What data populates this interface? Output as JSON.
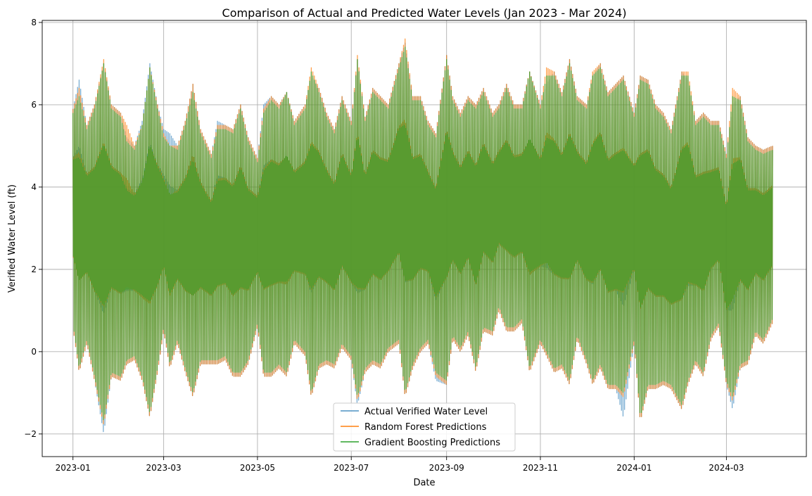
{
  "chart_data": {
    "type": "line",
    "title": "Comparison of Actual and Predicted Water Levels (Jan 2023 - Mar 2024)",
    "xlabel": "Date",
    "ylabel": "Verified Water Level (ft)",
    "xlim": [
      "2022-12-12",
      "2024-04-22"
    ],
    "ylim": [
      -2.55,
      8.05
    ],
    "x_ticks": [
      "2023-01-01",
      "2023-03-01",
      "2023-05-01",
      "2023-07-01",
      "2023-09-01",
      "2023-11-01",
      "2024-01-01",
      "2024-03-01"
    ],
    "x_tick_labels": [
      "2023-01",
      "2023-03",
      "2023-05",
      "2023-07",
      "2023-09",
      "2023-11",
      "2024-01",
      "2024-03"
    ],
    "y_ticks": [
      -2,
      0,
      2,
      4,
      6,
      8
    ],
    "y_tick_labels": [
      "−2",
      "0",
      "2",
      "4",
      "6",
      "8"
    ],
    "grid": true,
    "legend_position": "lower-center",
    "x_start": "2023-01-01",
    "x_end": "2024-03-31",
    "x_step": "6 hours",
    "series": [
      {
        "name": "Actual Verified Water Level",
        "color": "#1f77b4",
        "opacity": 0.6,
        "envelope_dates": [
          "2023-01-01",
          "2023-01-05",
          "2023-01-10",
          "2023-01-15",
          "2023-01-21",
          "2023-01-26",
          "2023-02-01",
          "2023-02-05",
          "2023-02-10",
          "2023-02-15",
          "2023-02-20",
          "2023-02-25",
          "2023-03-01",
          "2023-03-05",
          "2023-03-10",
          "2023-03-15",
          "2023-03-20",
          "2023-03-25",
          "2023-04-01",
          "2023-04-05",
          "2023-04-10",
          "2023-04-15",
          "2023-04-20",
          "2023-04-25",
          "2023-05-01",
          "2023-05-05",
          "2023-05-10",
          "2023-05-15",
          "2023-05-20",
          "2023-05-25",
          "2023-06-01",
          "2023-06-05",
          "2023-06-10",
          "2023-06-15",
          "2023-06-20",
          "2023-06-25",
          "2023-07-01",
          "2023-07-05",
          "2023-07-10",
          "2023-07-15",
          "2023-07-20",
          "2023-07-25",
          "2023-08-01",
          "2023-08-05",
          "2023-08-10",
          "2023-08-15",
          "2023-08-20",
          "2023-08-25",
          "2023-09-01",
          "2023-09-05",
          "2023-09-10",
          "2023-09-15",
          "2023-09-20",
          "2023-09-25",
          "2023-10-01",
          "2023-10-05",
          "2023-10-10",
          "2023-10-15",
          "2023-10-20",
          "2023-10-25",
          "2023-11-01",
          "2023-11-05",
          "2023-11-10",
          "2023-11-15",
          "2023-11-20",
          "2023-11-25",
          "2023-12-01",
          "2023-12-05",
          "2023-12-10",
          "2023-12-15",
          "2023-12-20",
          "2023-12-25",
          "2024-01-01",
          "2024-01-05",
          "2024-01-10",
          "2024-01-15",
          "2024-01-20",
          "2024-01-25",
          "2024-02-01",
          "2024-02-05",
          "2024-02-10",
          "2024-02-15",
          "2024-02-20",
          "2024-02-25",
          "2024-03-01",
          "2024-03-05",
          "2024-03-10",
          "2024-03-15",
          "2024-03-20",
          "2024-03-25",
          "2024-03-31"
        ],
        "envelope_high": [
          5.9,
          6.6,
          5.5,
          6.0,
          7.0,
          6.0,
          5.8,
          5.2,
          5.0,
          5.6,
          7.0,
          6.0,
          5.4,
          5.3,
          5.0,
          5.6,
          6.5,
          5.4,
          4.8,
          5.6,
          5.5,
          5.4,
          6.0,
          5.2,
          4.7,
          6.0,
          6.2,
          6.0,
          6.3,
          5.6,
          6.0,
          6.7,
          6.4,
          5.8,
          5.4,
          6.2,
          5.6,
          7.1,
          5.7,
          6.4,
          6.2,
          6.0,
          7.0,
          7.5,
          6.2,
          6.2,
          5.6,
          5.3,
          7.2,
          6.2,
          5.8,
          6.2,
          6.0,
          6.4,
          5.8,
          6.0,
          6.5,
          6.0,
          6.0,
          6.8,
          6.0,
          6.5,
          6.8,
          6.3,
          7.1,
          6.2,
          6.0,
          6.7,
          7.0,
          6.3,
          6.5,
          6.7,
          5.8,
          6.7,
          6.6,
          6.0,
          5.8,
          5.4,
          6.8,
          6.6,
          5.6,
          5.8,
          5.6,
          5.6,
          4.8,
          6.0,
          6.2,
          5.2,
          5.0,
          4.9,
          5.0
        ],
        "envelope_low": [
          0.6,
          -0.5,
          0.2,
          -0.7,
          -2.0,
          -0.6,
          -0.7,
          -0.3,
          -0.2,
          -0.7,
          -1.6,
          -0.5,
          0.5,
          -0.4,
          0.2,
          -0.5,
          -1.1,
          -0.3,
          -0.3,
          -0.3,
          -0.2,
          -0.6,
          -0.6,
          -0.3,
          0.6,
          -0.6,
          -0.6,
          -0.4,
          -0.6,
          0.2,
          -0.1,
          -1.1,
          -0.4,
          -0.3,
          -0.4,
          0.1,
          -0.2,
          -1.3,
          -0.5,
          -0.3,
          -0.4,
          0.0,
          0.2,
          -1.1,
          -0.4,
          0.0,
          0.2,
          -0.7,
          -0.8,
          0.3,
          0.0,
          0.4,
          -0.5,
          0.5,
          0.4,
          1.0,
          0.5,
          0.5,
          0.7,
          -0.5,
          0.2,
          -0.1,
          -0.5,
          -0.4,
          -0.8,
          0.3,
          -0.3,
          -0.8,
          -0.4,
          -0.9,
          -0.9,
          -1.6,
          0.2,
          -1.7,
          -0.9,
          -0.9,
          -0.8,
          -0.9,
          -1.4,
          -0.8,
          -0.3,
          -0.6,
          0.3,
          0.6,
          -0.8,
          -1.4,
          -0.4,
          -0.3,
          0.4,
          0.2,
          0.7
        ]
      },
      {
        "name": "Random Forest Predictions",
        "color": "#ff7f0e",
        "opacity": 0.75,
        "envelope_dates": [
          "2023-01-01",
          "2023-01-05",
          "2023-01-10",
          "2023-01-15",
          "2023-01-21",
          "2023-01-26",
          "2023-02-01",
          "2023-02-05",
          "2023-02-10",
          "2023-02-15",
          "2023-02-20",
          "2023-02-25",
          "2023-03-01",
          "2023-03-05",
          "2023-03-10",
          "2023-03-15",
          "2023-03-20",
          "2023-03-25",
          "2023-04-01",
          "2023-04-05",
          "2023-04-10",
          "2023-04-15",
          "2023-04-20",
          "2023-04-25",
          "2023-05-01",
          "2023-05-05",
          "2023-05-10",
          "2023-05-15",
          "2023-05-20",
          "2023-05-25",
          "2023-06-01",
          "2023-06-05",
          "2023-06-10",
          "2023-06-15",
          "2023-06-20",
          "2023-06-25",
          "2023-07-01",
          "2023-07-05",
          "2023-07-10",
          "2023-07-15",
          "2023-07-20",
          "2023-07-25",
          "2023-08-01",
          "2023-08-05",
          "2023-08-10",
          "2023-08-15",
          "2023-08-20",
          "2023-08-25",
          "2023-09-01",
          "2023-09-05",
          "2023-09-10",
          "2023-09-15",
          "2023-09-20",
          "2023-09-25",
          "2023-10-01",
          "2023-10-05",
          "2023-10-10",
          "2023-10-15",
          "2023-10-20",
          "2023-10-25",
          "2023-11-01",
          "2023-11-05",
          "2023-11-10",
          "2023-11-15",
          "2023-11-20",
          "2023-11-25",
          "2023-12-01",
          "2023-12-05",
          "2023-12-10",
          "2023-12-15",
          "2023-12-20",
          "2023-12-25",
          "2024-01-01",
          "2024-01-05",
          "2024-01-10",
          "2024-01-15",
          "2024-01-20",
          "2024-01-25",
          "2024-02-01",
          "2024-02-05",
          "2024-02-10",
          "2024-02-15",
          "2024-02-20",
          "2024-02-25",
          "2024-03-01",
          "2024-03-05",
          "2024-03-10",
          "2024-03-15",
          "2024-03-20",
          "2024-03-25",
          "2024-03-31"
        ],
        "envelope_high": [
          5.9,
          6.4,
          5.5,
          6.0,
          7.1,
          6.0,
          5.8,
          5.5,
          5.0,
          5.5,
          6.9,
          6.0,
          5.3,
          5.0,
          5.0,
          5.6,
          6.5,
          5.4,
          4.8,
          5.5,
          5.5,
          5.4,
          6.0,
          5.2,
          4.7,
          5.9,
          6.2,
          6.0,
          6.3,
          5.6,
          6.0,
          6.9,
          6.4,
          5.8,
          5.4,
          6.2,
          5.6,
          7.2,
          5.7,
          6.4,
          6.2,
          6.0,
          7.0,
          7.6,
          6.2,
          6.2,
          5.6,
          5.3,
          7.2,
          6.2,
          5.8,
          6.2,
          6.0,
          6.4,
          5.8,
          6.0,
          6.5,
          6.0,
          6.0,
          6.8,
          6.0,
          6.9,
          6.8,
          6.3,
          7.1,
          6.2,
          6.0,
          6.8,
          7.0,
          6.3,
          6.5,
          6.7,
          5.8,
          6.7,
          6.6,
          6.0,
          5.8,
          5.4,
          6.8,
          6.8,
          5.6,
          5.8,
          5.6,
          5.6,
          4.8,
          6.4,
          6.2,
          5.2,
          5.0,
          4.9,
          5.0
        ],
        "envelope_low": [
          0.6,
          -0.5,
          0.2,
          -0.7,
          -1.8,
          -0.6,
          -0.7,
          -0.3,
          -0.2,
          -0.7,
          -1.6,
          -0.5,
          0.5,
          -0.4,
          0.2,
          -0.5,
          -1.1,
          -0.3,
          -0.3,
          -0.3,
          -0.2,
          -0.6,
          -0.6,
          -0.3,
          0.6,
          -0.6,
          -0.6,
          -0.4,
          -0.6,
          0.2,
          -0.1,
          -1.1,
          -0.4,
          -0.3,
          -0.4,
          0.1,
          -0.2,
          -1.2,
          -0.5,
          -0.3,
          -0.4,
          0.0,
          0.2,
          -1.1,
          -0.4,
          0.0,
          0.2,
          -0.6,
          -0.8,
          0.3,
          0.0,
          0.4,
          -0.5,
          0.5,
          0.4,
          1.0,
          0.5,
          0.5,
          0.7,
          -0.5,
          0.2,
          -0.1,
          -0.5,
          -0.4,
          -0.8,
          0.3,
          -0.3,
          -0.8,
          -0.4,
          -0.9,
          -0.9,
          -1.1,
          0.2,
          -1.7,
          -0.9,
          -0.9,
          -0.8,
          -0.9,
          -1.4,
          -0.8,
          -0.3,
          -0.6,
          0.3,
          0.6,
          -0.8,
          -1.2,
          -0.4,
          -0.3,
          0.4,
          0.2,
          0.7
        ]
      },
      {
        "name": "Gradient Boosting Predictions",
        "color": "#2ca02c",
        "opacity": 0.75,
        "envelope_dates": [
          "2023-01-01",
          "2023-01-05",
          "2023-01-10",
          "2023-01-15",
          "2023-01-21",
          "2023-01-26",
          "2023-02-01",
          "2023-02-05",
          "2023-02-10",
          "2023-02-15",
          "2023-02-20",
          "2023-02-25",
          "2023-03-01",
          "2023-03-05",
          "2023-03-10",
          "2023-03-15",
          "2023-03-20",
          "2023-03-25",
          "2023-04-01",
          "2023-04-05",
          "2023-04-10",
          "2023-04-15",
          "2023-04-20",
          "2023-04-25",
          "2023-05-01",
          "2023-05-05",
          "2023-05-10",
          "2023-05-15",
          "2023-05-20",
          "2023-05-25",
          "2023-06-01",
          "2023-06-05",
          "2023-06-10",
          "2023-06-15",
          "2023-06-20",
          "2023-06-25",
          "2023-07-01",
          "2023-07-05",
          "2023-07-10",
          "2023-07-15",
          "2023-07-20",
          "2023-07-25",
          "2023-08-01",
          "2023-08-05",
          "2023-08-10",
          "2023-08-15",
          "2023-08-20",
          "2023-08-25",
          "2023-09-01",
          "2023-09-05",
          "2023-09-10",
          "2023-09-15",
          "2023-09-20",
          "2023-09-25",
          "2023-10-01",
          "2023-10-05",
          "2023-10-10",
          "2023-10-15",
          "2023-10-20",
          "2023-10-25",
          "2023-11-01",
          "2023-11-05",
          "2023-11-10",
          "2023-11-15",
          "2023-11-20",
          "2023-11-25",
          "2023-12-01",
          "2023-12-05",
          "2023-12-10",
          "2023-12-15",
          "2023-12-20",
          "2023-12-25",
          "2024-01-01",
          "2024-01-05",
          "2024-01-10",
          "2024-01-15",
          "2024-01-20",
          "2024-01-25",
          "2024-02-01",
          "2024-02-05",
          "2024-02-10",
          "2024-02-15",
          "2024-02-20",
          "2024-02-25",
          "2024-03-01",
          "2024-03-05",
          "2024-03-10",
          "2024-03-15",
          "2024-03-20",
          "2024-03-25",
          "2024-03-31"
        ],
        "envelope_high": [
          5.8,
          6.2,
          5.4,
          5.9,
          7.0,
          5.9,
          5.7,
          5.1,
          4.9,
          5.5,
          6.9,
          5.9,
          5.2,
          5.0,
          4.9,
          5.5,
          6.3,
          5.3,
          4.7,
          5.4,
          5.4,
          5.3,
          5.9,
          5.1,
          4.6,
          5.8,
          6.1,
          5.9,
          6.3,
          5.5,
          5.9,
          6.8,
          6.3,
          5.7,
          5.3,
          6.1,
          5.5,
          7.1,
          5.6,
          6.3,
          6.1,
          5.9,
          6.9,
          7.4,
          6.1,
          6.1,
          5.5,
          5.2,
          7.1,
          6.1,
          5.7,
          6.1,
          5.9,
          6.3,
          5.7,
          5.9,
          6.4,
          5.9,
          5.9,
          6.8,
          5.9,
          6.7,
          6.7,
          6.2,
          7.0,
          6.1,
          5.9,
          6.7,
          6.9,
          6.2,
          6.4,
          6.6,
          5.7,
          6.6,
          6.5,
          5.9,
          5.7,
          5.3,
          6.7,
          6.7,
          5.5,
          5.7,
          5.5,
          5.5,
          4.7,
          6.2,
          6.1,
          5.1,
          4.9,
          4.8,
          4.9
        ],
        "envelope_low": [
          0.7,
          -0.4,
          0.3,
          -0.6,
          -1.7,
          -0.5,
          -0.6,
          -0.2,
          -0.1,
          -0.6,
          -1.5,
          -0.4,
          0.6,
          -0.3,
          0.3,
          -0.4,
          -1.0,
          -0.2,
          -0.2,
          -0.2,
          -0.1,
          -0.5,
          -0.5,
          -0.2,
          0.7,
          -0.5,
          -0.5,
          -0.3,
          -0.5,
          0.3,
          0.0,
          -1.0,
          -0.3,
          -0.2,
          -0.3,
          0.2,
          -0.1,
          -1.1,
          -0.4,
          -0.2,
          -0.3,
          0.1,
          0.3,
          -1.0,
          -0.3,
          0.1,
          0.3,
          -0.5,
          -0.7,
          0.4,
          0.1,
          0.5,
          -0.4,
          0.6,
          0.5,
          1.1,
          0.6,
          0.6,
          0.8,
          -0.4,
          0.3,
          0.0,
          -0.4,
          -0.3,
          -0.7,
          0.4,
          -0.2,
          -0.7,
          -0.3,
          -0.8,
          -0.8,
          -1.0,
          0.3,
          -1.6,
          -0.8,
          -0.8,
          -0.7,
          -0.8,
          -1.3,
          -0.7,
          -0.2,
          -0.5,
          0.4,
          0.7,
          -0.7,
          -1.1,
          -0.3,
          -0.2,
          0.5,
          0.3,
          0.8
        ]
      }
    ]
  }
}
